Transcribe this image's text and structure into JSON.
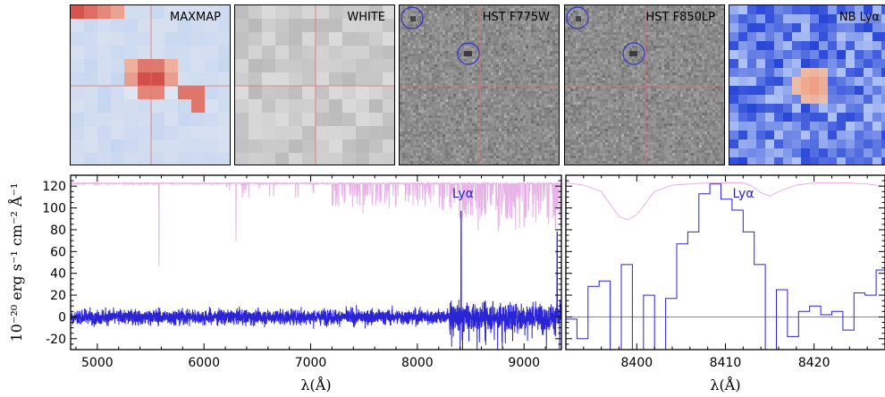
{
  "thumbnails": [
    {
      "label": "MAXMAP",
      "kind": "maxmap"
    },
    {
      "label": "WHITE",
      "kind": "white"
    },
    {
      "label": "HST F775W",
      "kind": "hst"
    },
    {
      "label": "HST F850LP",
      "kind": "hst"
    },
    {
      "label": "NB Lyα",
      "kind": "nb"
    }
  ],
  "chart_data": [
    {
      "type": "line",
      "panel": "full-spectrum",
      "xlabel": "λ(Å)",
      "ylabel": "10⁻²⁰ erg s⁻¹ cm⁻² Å⁻¹",
      "xlim": [
        4750,
        9350
      ],
      "ylim": [
        -30,
        130
      ],
      "xticks": [
        5000,
        6000,
        7000,
        8000,
        9000
      ],
      "yticks": [
        -20,
        0,
        20,
        40,
        60,
        80,
        100,
        120
      ],
      "annotation": "Lyα",
      "annotation_x": 8410,
      "series": [
        {
          "role": "flux",
          "color": "#2a24d6",
          "noise_sigma": 5,
          "lines": [
            [
              8410,
              97
            ],
            [
              9310,
              78
            ]
          ]
        },
        {
          "role": "sky",
          "color": "#e8b4e8",
          "baseline": 123,
          "lines": [
            [
              5577,
              47
            ],
            [
              6300,
              70
            ],
            [
              8344,
              108
            ],
            [
              8399,
              95
            ],
            [
              8430,
              100
            ],
            [
              8827,
              92
            ],
            [
              8885,
              90
            ],
            [
              8920,
              80
            ],
            [
              8958,
              82
            ],
            [
              9001,
              83
            ],
            [
              9040,
              98
            ],
            [
              9155,
              97
            ]
          ]
        },
        {
          "role": "zero",
          "color": "#888888",
          "y": 0
        }
      ]
    },
    {
      "type": "line",
      "panel": "zoom",
      "xlabel": "λ(Å)",
      "xlim": [
        8392,
        8428
      ],
      "ylim": [
        -30,
        130
      ],
      "xticks": [
        8400,
        8410,
        8420
      ],
      "annotation": "Lyα",
      "annotation_x": 8410,
      "series": [
        {
          "role": "flux",
          "color": "#2a24d6",
          "step_x": [
            8392.0,
            8393.25,
            8394.5,
            8395.75,
            8397.0,
            8398.25,
            8399.5,
            8400.75,
            8402.0,
            8403.25,
            8404.5,
            8405.75,
            8407.0,
            8408.25,
            8409.5,
            8410.75,
            8412.0,
            8413.25,
            8414.5,
            8415.75,
            8417.0,
            8418.25,
            8419.5,
            8420.75,
            8422.0,
            8423.25,
            8424.5,
            8425.75,
            8427.0
          ],
          "values": [
            -2,
            -20,
            28,
            33,
            -30,
            48,
            -30,
            20,
            -30,
            17,
            67,
            78,
            113,
            122,
            108,
            98,
            78,
            48,
            -30,
            25,
            -18,
            5,
            10,
            2,
            5,
            -12,
            22,
            20,
            43
          ]
        },
        {
          "role": "sky",
          "color": "#e8b4e8",
          "x": [
            8392,
            8394,
            8396,
            8398,
            8399,
            8400,
            8402,
            8404,
            8406,
            8408,
            8410,
            8412,
            8413,
            8414,
            8415,
            8416,
            8418,
            8420,
            8422,
            8424,
            8426,
            8428
          ],
          "values": [
            123,
            121,
            115,
            92,
            89,
            94,
            115,
            121,
            122,
            123,
            123,
            123,
            120,
            114,
            111,
            115,
            121,
            123,
            123,
            123,
            122,
            120
          ]
        },
        {
          "role": "zero",
          "color": "#888888",
          "y": 0
        }
      ]
    }
  ]
}
